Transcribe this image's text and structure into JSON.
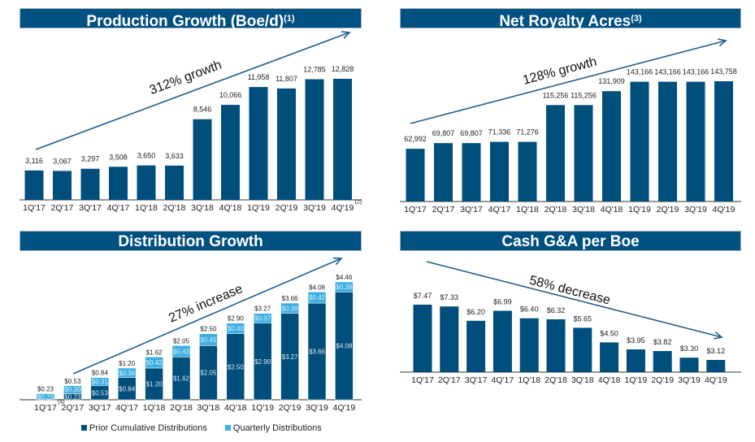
{
  "colors": {
    "dark": "#004e7c",
    "light": "#3cb0e4",
    "title_bg": "#005082",
    "text": "#222222"
  },
  "chart_data": [
    {
      "type": "bar",
      "title": "Production Growth (Boe/d)",
      "title_note": "(1)",
      "categories": [
        "1Q'17",
        "2Q'17",
        "3Q'17",
        "4Q'17",
        "1Q'18",
        "2Q'18",
        "3Q'18",
        "4Q'18",
        "1Q'19",
        "2Q'19",
        "3Q'19",
        "4Q'19"
      ],
      "category_notes": {
        "11": "(2)"
      },
      "values": [
        3116,
        3067,
        3297,
        3508,
        3650,
        3633,
        8546,
        10066,
        11958,
        11807,
        12785,
        12828
      ],
      "labels": [
        "3,116",
        "3,067",
        "3,297",
        "3,508",
        "3,650",
        "3,633",
        "8,546",
        "10,066",
        "11,958",
        "11,807",
        "12,785",
        "12,828"
      ],
      "ylim": [
        0,
        12828
      ],
      "annotation": "312% growth",
      "annotation_arrow": "up"
    },
    {
      "type": "bar",
      "title": "Net Royalty Acres",
      "title_note": "(3)",
      "categories": [
        "1Q'17",
        "2Q'17",
        "3Q'17",
        "4Q'17",
        "1Q'18",
        "2Q'18",
        "3Q'18",
        "4Q'18",
        "1Q'19",
        "2Q'19",
        "3Q'19",
        "4Q'19"
      ],
      "category_notes": {},
      "values": [
        62992,
        69807,
        69807,
        71336,
        71276,
        115256,
        115256,
        131909,
        143166,
        143166,
        143166,
        143758
      ],
      "labels": [
        "62,992",
        "69,807",
        "69,807",
        "71,336",
        "71,276",
        "115,256",
        "115,256",
        "131,909",
        "143,166",
        "143,166",
        "143,166",
        "143,758"
      ],
      "ylim": [
        0,
        143758
      ],
      "annotation": "128% growth",
      "annotation_arrow": "up"
    },
    {
      "type": "stacked-bar",
      "title": "Distribution Growth",
      "title_note": "",
      "categories": [
        "1Q'17",
        "2Q'17",
        "3Q'17",
        "4Q'17",
        "1Q'18",
        "2Q'18",
        "3Q'18",
        "4Q'18",
        "1Q'19",
        "2Q'19",
        "3Q'19",
        "4Q'19"
      ],
      "category_notes": {
        "0": "(4)"
      },
      "series": [
        {
          "name": "Prior Cumulative Distributions",
          "values": [
            0,
            0.23,
            0.53,
            0.84,
            1.2,
            1.62,
            2.05,
            2.5,
            2.9,
            3.27,
            3.66,
            4.08
          ],
          "labels": [
            "",
            "$0.23",
            "$0.53",
            "$0.84",
            "$1.20",
            "$1.62",
            "$2.05",
            "$2.50",
            "$2.90",
            "$3.27",
            "$3.66",
            "$4.08"
          ]
        },
        {
          "name": "Quarterly Distributions",
          "values": [
            0.23,
            0.3,
            0.31,
            0.36,
            0.42,
            0.43,
            0.45,
            0.4,
            0.37,
            0.39,
            0.42,
            0.38
          ],
          "labels": [
            "$0.23",
            "$0.30",
            "$0.31",
            "$0.36",
            "$0.42",
            "$0.43",
            "$0.45",
            "$0.40",
            "$0.37",
            "$0.39",
            "$0.42",
            "$0.38"
          ]
        }
      ],
      "totals": [
        "$0.23",
        "$0.53",
        "$0.84",
        "$1.20",
        "$1.62",
        "$2.05",
        "$2.50",
        "$2.90",
        "$3.27",
        "$3.66",
        "$4.08",
        "$4.46"
      ],
      "ylim": [
        0,
        4.46
      ],
      "annotation": "27% increase",
      "annotation_arrow": "up",
      "legend": "bottom"
    },
    {
      "type": "bar",
      "title": "Cash G&A per Boe",
      "title_note": "",
      "categories": [
        "1Q'17",
        "2Q'17",
        "3Q'17",
        "4Q'17",
        "1Q'18",
        "2Q'18",
        "3Q'18",
        "4Q'18",
        "1Q'19",
        "2Q'19",
        "3Q'19",
        "4Q'19"
      ],
      "category_notes": {},
      "values": [
        7.47,
        7.33,
        6.2,
        6.99,
        6.4,
        6.32,
        5.65,
        4.5,
        3.95,
        3.82,
        3.3,
        3.12
      ],
      "labels": [
        "$7.47",
        "$7.33",
        "$6.20",
        "$6.99",
        "$6.40",
        "$6.32",
        "$5.65",
        "$4.50",
        "$3.95",
        "$3.82",
        "$3.30",
        "$3.12"
      ],
      "ylim": [
        2.16,
        7.47
      ],
      "annotation": "58% decrease",
      "annotation_arrow": "down"
    }
  ]
}
